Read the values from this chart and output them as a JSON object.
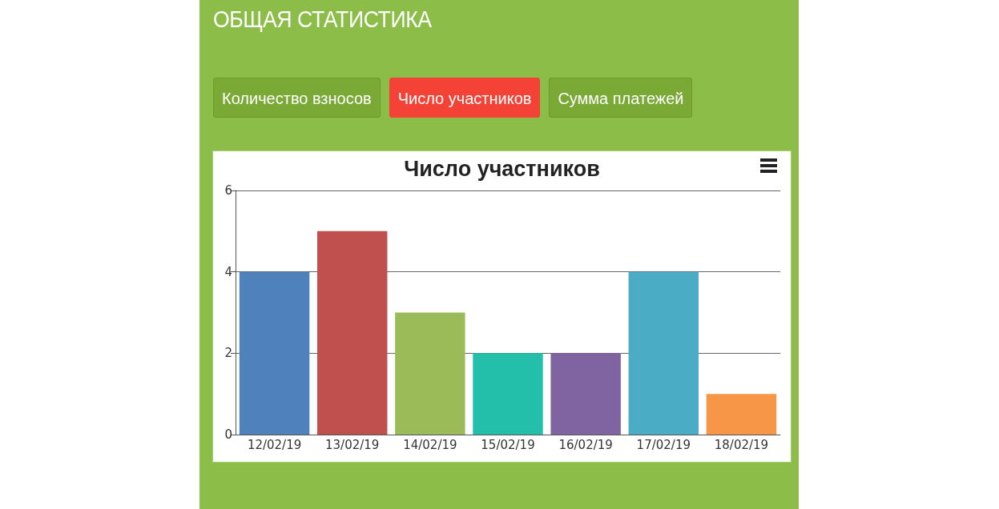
{
  "chart_data": {
    "type": "bar",
    "title": "Число участников",
    "categories": [
      "12/02/19",
      "13/02/19",
      "14/02/19",
      "15/02/19",
      "16/02/19",
      "17/02/19",
      "18/02/19"
    ],
    "values": [
      4,
      5,
      3,
      2,
      2,
      4,
      1
    ],
    "colors": [
      "#4f81bc",
      "#c0504e",
      "#9bbb58",
      "#23bfaa",
      "#8064a1",
      "#4aacc5",
      "#f79647"
    ],
    "ylim": [
      0,
      6
    ],
    "yticks": [
      0,
      2,
      4,
      6
    ],
    "grid": "y",
    "annotations": [
      "ОБЩАЯ СТАТИСТИКА",
      "Количество взносов",
      "Число участников",
      "Сумма платежей"
    ]
  }
}
